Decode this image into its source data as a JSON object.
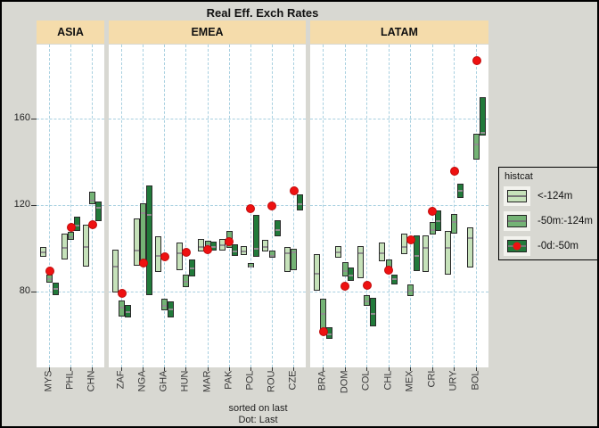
{
  "title": "Real Eff. Exch Rates",
  "footer": {
    "line1": "sorted on last",
    "line2": "Dot: Last"
  },
  "legend": {
    "title": "histcat",
    "items": [
      {
        "label": "<-124m",
        "type": "light"
      },
      {
        "label": "-50m:-124m",
        "type": "medium"
      },
      {
        "label": "-0d:-50m",
        "type": "dark-dot"
      }
    ]
  },
  "colors": {
    "light": "#c6e2ba",
    "medium": "#74b375",
    "dark": "#217a3a",
    "dot": "#ee1111",
    "header": "#f5dcab",
    "grid": "#a8d0e0",
    "background": "#d8d8d2",
    "panel": "#ffffff",
    "bar_midline": "#8f8f8f"
  },
  "chart_data": {
    "type": "bar",
    "subtype": "faceted-floating-range-bars-with-last-dot",
    "title": "Real Eff. Exch Rates",
    "ylabel": "",
    "xlabel": "",
    "y_ticks": [
      160,
      120,
      80
    ],
    "ylim": [
      45,
      194
    ],
    "grid": "dashed-lightblue",
    "legend_title": "histcat",
    "legend_position": "right",
    "note": "sorted on last; Dot: Last",
    "series_names": [
      "<-124m",
      "-50m:-124m",
      "-0d:-50m",
      "last"
    ],
    "facets": [
      {
        "label": "ASIA",
        "countries": [
          {
            "code": "MYS",
            "light": [
              96,
              100.5
            ],
            "light_mid": 98.5,
            "medium": [
              84,
              88
            ],
            "medium_mid": 86,
            "dark": [
              78.5,
              84
            ],
            "dark_mid": 81.5,
            "last": 89.5
          },
          {
            "code": "PHL",
            "light": [
              95,
              107
            ],
            "light_mid": 100.5,
            "medium": [
              104,
              107.5
            ],
            "medium_mid": 105.5,
            "dark": [
              108,
              114.5
            ],
            "dark_mid": 111,
            "last": 109.5
          },
          {
            "code": "CHN",
            "light": [
              91.5,
              111
            ],
            "light_mid": 101,
            "medium": [
              120.5,
              126
            ],
            "medium_mid": 122.5,
            "dark": [
              112.5,
              121.5
            ],
            "dark_mid": 119,
            "last": 111
          }
        ]
      },
      {
        "label": "EMEA",
        "countries": [
          {
            "code": "ZAF",
            "light": [
              79.5,
              99.5
            ],
            "light_mid": 92,
            "medium": [
              68.5,
              76
            ],
            "medium_mid": 73,
            "dark": [
              68,
              74
            ],
            "dark_mid": 71,
            "last": 79
          },
          {
            "code": "NGA",
            "light": [
              92,
              114
            ],
            "light_mid": 99.5,
            "medium": [
              93,
              121
            ],
            "medium_mid": 116.5,
            "dark": [
              78.5,
              129
            ],
            "dark_mid": 116,
            "last": 93
          },
          {
            "code": "GHA",
            "light": [
              89,
              105.5
            ],
            "light_mid": 97,
            "medium": [
              71.5,
              76.5
            ],
            "medium_mid": 74,
            "dark": [
              68,
              75.5
            ],
            "dark_mid": 72,
            "last": 96
          },
          {
            "code": "HUN",
            "light": [
              90,
              102.5
            ],
            "light_mid": 98,
            "medium": [
              82,
              88
            ],
            "medium_mid": 85,
            "dark": [
              87,
              95
            ],
            "dark_mid": 91,
            "last": 98
          },
          {
            "code": "MAR",
            "light": [
              98.5,
              104.5
            ],
            "light_mid": 101,
            "medium": [
              100.5,
              103.5
            ],
            "medium_mid": 102,
            "dark": [
              99,
              103
            ],
            "dark_mid": 101,
            "last": 99.5
          },
          {
            "code": "PAK",
            "light": [
              99,
              104.5
            ],
            "light_mid": 102,
            "medium": [
              100,
              108
            ],
            "medium_mid": 103.5,
            "dark": [
              96.5,
              102
            ],
            "dark_mid": 99,
            "last": 103
          },
          {
            "code": "POL",
            "light": [
              97,
              101
            ],
            "light_mid": 99,
            "medium": [
              91,
              93
            ],
            "medium_mid": 92,
            "dark": [
              96,
              115.5
            ],
            "dark_mid": 100,
            "last": 118.5
          },
          {
            "code": "ROU",
            "light": [
              98.5,
              104
            ],
            "light_mid": 101,
            "medium": [
              95.5,
              99
            ],
            "medium_mid": 97,
            "dark": [
              105.5,
              113
            ],
            "dark_mid": 109,
            "last": 119.5
          },
          {
            "code": "CZE",
            "light": [
              89,
              100.5
            ],
            "light_mid": 98,
            "medium": [
              90,
              100
            ],
            "medium_mid": 98.5,
            "dark": [
              117.5,
              125
            ],
            "dark_mid": 121,
            "last": 126.5
          }
        ]
      },
      {
        "label": "LATAM",
        "countries": [
          {
            "code": "BRA",
            "light": [
              80.5,
              97.5
            ],
            "light_mid": 88.5,
            "medium": [
              62,
              76.5
            ],
            "medium_mid": 70,
            "dark": [
              58,
              63.5
            ],
            "dark_mid": 60.5,
            "last": 61.5
          },
          {
            "code": "DOM",
            "light": [
              95.5,
              101
            ],
            "light_mid": 98.5,
            "medium": [
              87,
              93.5
            ],
            "medium_mid": 90,
            "dark": [
              85,
              91
            ],
            "dark_mid": 88,
            "last": 82.5
          },
          {
            "code": "COL",
            "light": [
              86,
              101
            ],
            "light_mid": 98,
            "medium": [
              73.5,
              78.5
            ],
            "medium_mid": 76,
            "dark": [
              64,
              77
            ],
            "dark_mid": 70,
            "last": 83
          },
          {
            "code": "CHL",
            "light": [
              94,
              102.5
            ],
            "light_mid": 98,
            "medium": [
              89.5,
              95
            ],
            "medium_mid": 92,
            "dark": [
              83.5,
              88
            ],
            "dark_mid": 86,
            "last": 90
          },
          {
            "code": "MEX",
            "light": [
              97.5,
              107
            ],
            "light_mid": 101,
            "medium": [
              78,
              83.5
            ],
            "medium_mid": 81,
            "dark": [
              89.5,
              106
            ],
            "dark_mid": 97,
            "last": 104
          },
          {
            "code": "CRI",
            "light": [
              89,
              106
            ],
            "light_mid": 100.5,
            "medium": [
              106.5,
              112
            ],
            "medium_mid": 109,
            "dark": [
              108,
              117.5
            ],
            "dark_mid": 113,
            "last": 117
          },
          {
            "code": "URY",
            "light": [
              88,
              108
            ],
            "light_mid": 100.5,
            "medium": [
              107,
              116
            ],
            "medium_mid": 112.5,
            "dark": [
              123.5,
              130
            ],
            "dark_mid": 127,
            "last": 135.5
          },
          {
            "code": "BOL",
            "light": [
              91,
              109.5
            ],
            "light_mid": 105,
            "medium": [
              141,
              153
            ],
            "medium_mid": 148.5,
            "dark": [
              152,
              170
            ],
            "dark_mid": 154,
            "last": 187
          }
        ]
      }
    ]
  }
}
